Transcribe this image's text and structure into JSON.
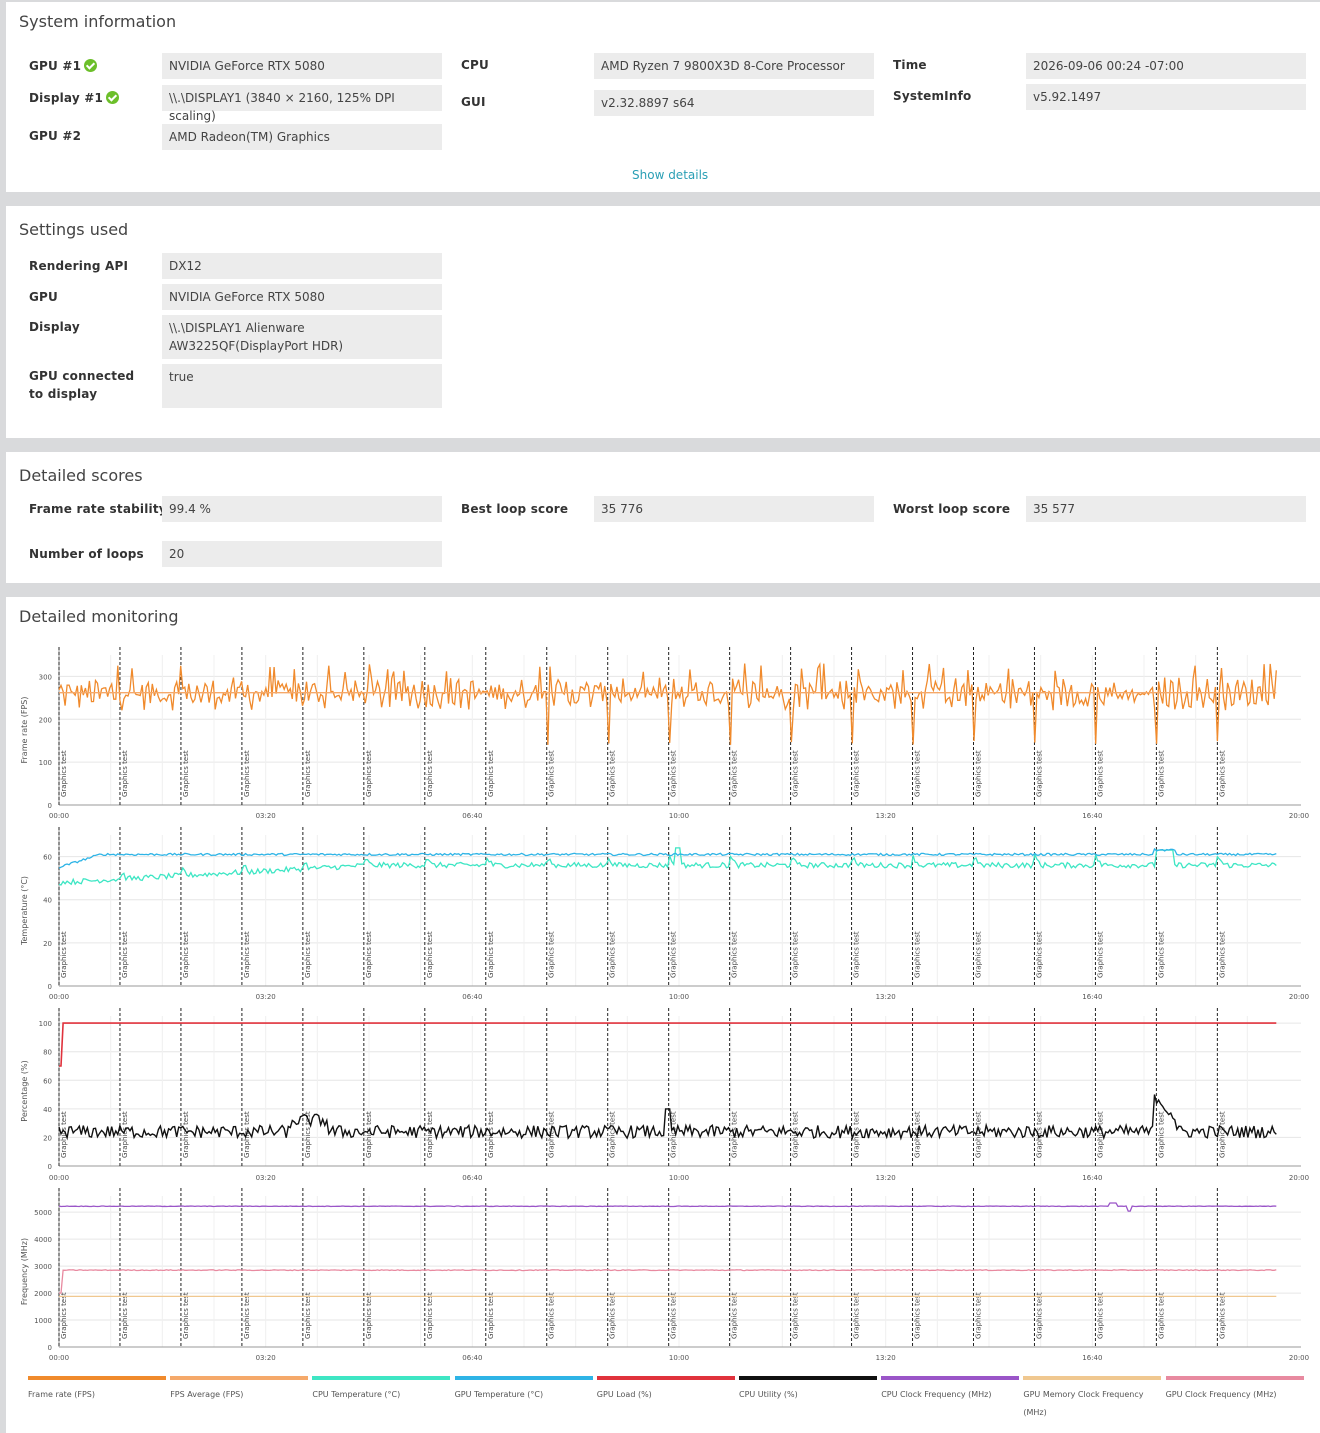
{
  "system_info": {
    "title": "System information",
    "gpu1_label": "GPU #1",
    "gpu1_value": "NVIDIA GeForce RTX 5080",
    "display1_label": "Display #1",
    "display1_value": "\\\\.\\DISPLAY1 (3840 × 2160, 125% DPI scaling)",
    "gpu2_label": "GPU #2",
    "gpu2_value": "AMD Radeon(TM) Graphics",
    "cpu_label": "CPU",
    "cpu_value": "AMD Ryzen 7 9800X3D 8-Core Processor",
    "gui_label": "GUI",
    "gui_value": "v2.32.8897 s64",
    "time_label": "Time",
    "time_value": "2026-09-06 00:24 -07:00",
    "sysinfo_label": "SystemInfo",
    "sysinfo_value": "v5.92.1497",
    "show_details": "Show details"
  },
  "settings": {
    "title": "Settings used",
    "api_label": "Rendering API",
    "api_value": "DX12",
    "gpu_label": "GPU",
    "gpu_value": "NVIDIA GeForce RTX 5080",
    "display_label": "Display",
    "display_value": "\\\\.\\DISPLAY1 Alienware AW3225QF(DisplayPort HDR)",
    "connected_label": "GPU connected to display",
    "connected_value": "true"
  },
  "scores": {
    "title": "Detailed scores",
    "stability_label": "Frame rate stability",
    "stability_value": "99.4 %",
    "best_label": "Best loop score",
    "best_value": "35 776",
    "worst_label": "Worst loop score",
    "worst_value": "35 577",
    "loops_label": "Number of loops",
    "loops_value": "20"
  },
  "monitoring": {
    "title": "Detailed monitoring",
    "marker_label": "Graphics test",
    "x_ticks": [
      "00:00",
      "03:20",
      "06:40",
      "10:00",
      "13:20",
      "16:40",
      "20:00"
    ],
    "legend": [
      {
        "label": "Frame rate (FPS)",
        "color": "#f08a2c"
      },
      {
        "label": "FPS Average (FPS)",
        "color": "#f5a96a"
      },
      {
        "label": "CPU Temperature (°C)",
        "color": "#3ee6c4"
      },
      {
        "label": "GPU Temperature (°C)",
        "color": "#2eb4e6"
      },
      {
        "label": "GPU Load (%)",
        "color": "#e0323c"
      },
      {
        "label": "CPU Utility (%)",
        "color": "#111111"
      },
      {
        "label": "CPU Clock Frequency (MHz)",
        "color": "#9a55c8"
      },
      {
        "label": "GPU Memory Clock Frequency (MHz)",
        "color": "#f0c890"
      },
      {
        "label": "GPU Clock Frequency (MHz)",
        "color": "#e88aa0"
      }
    ]
  },
  "chart_data": [
    {
      "type": "line",
      "ylabel": "Frame rate (FPS)",
      "ylim": [
        0,
        350
      ],
      "yticks": [
        0,
        100,
        200,
        300
      ],
      "xlim": [
        0,
        1200
      ],
      "x_unit": "seconds",
      "loop_markers_s": [
        0,
        59,
        118,
        177,
        236,
        295,
        354,
        413,
        472,
        531,
        590,
        649,
        708,
        767,
        826,
        885,
        944,
        1003,
        1062,
        1121
      ],
      "series": [
        {
          "name": "Frame rate (FPS)",
          "baseline": 260,
          "min_dips": 140,
          "peak": 330
        },
        {
          "name": "FPS Average (FPS)",
          "value": 262
        }
      ]
    },
    {
      "type": "line",
      "ylabel": "Temperature (°C)",
      "ylim": [
        0,
        70
      ],
      "yticks": [
        0,
        20,
        40,
        60
      ],
      "xlim": [
        0,
        1200
      ],
      "series": [
        {
          "name": "CPU Temperature (°C)",
          "start": 48,
          "level": 56,
          "peak": 64
        },
        {
          "name": "GPU Temperature (°C)",
          "start": 55,
          "level": 61
        }
      ]
    },
    {
      "type": "line",
      "ylabel": "Percentage (%)",
      "ylim": [
        0,
        105
      ],
      "yticks": [
        0,
        20,
        40,
        60,
        80,
        100
      ],
      "xlim": [
        0,
        1200
      ],
      "series": [
        {
          "name": "GPU Load (%)",
          "start": 70,
          "level": 100
        },
        {
          "name": "CPU Utility (%)",
          "level": 24,
          "peak": 46
        }
      ]
    },
    {
      "type": "line",
      "ylabel": "Frequency (MHz)",
      "ylim": [
        0,
        5600
      ],
      "yticks": [
        0,
        1000,
        2000,
        3000,
        4000,
        5000
      ],
      "xlim": [
        0,
        1200
      ],
      "series": [
        {
          "name": "CPU Clock Frequency (MHz)",
          "level": 5220
        },
        {
          "name": "GPU Clock Frequency (MHz)",
          "level": 2850
        },
        {
          "name": "GPU Memory Clock Frequency (MHz)",
          "level": 1875
        }
      ]
    }
  ]
}
